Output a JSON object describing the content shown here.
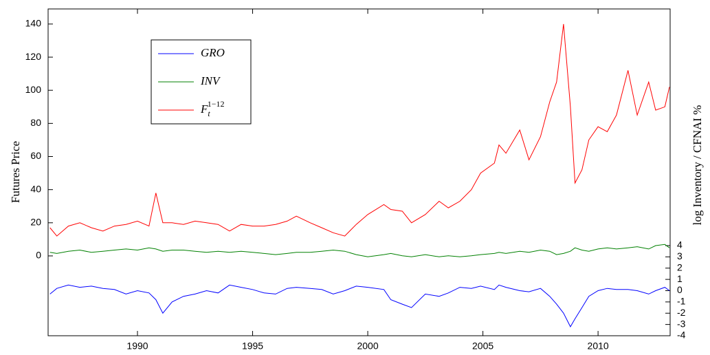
{
  "chart_data": {
    "type": "line",
    "ylabel": "Futures Price",
    "y2label": "log Inventory / CFNAI %",
    "xlim": [
      1986.12,
      2013.13
    ],
    "xticks": [
      1990,
      1995,
      2000,
      2005,
      2010
    ],
    "ylim": [
      -48.2,
      149.1
    ],
    "yticks": [
      0,
      20,
      40,
      60,
      80,
      100,
      120,
      140
    ],
    "y2lim": [
      -4,
      25
    ],
    "y2ticks": [
      -4,
      -3,
      -2,
      -1,
      0,
      1,
      2,
      3,
      4
    ],
    "legend": "upper-left",
    "x": [
      1986.2,
      1986.5,
      1987.0,
      1987.5,
      1988.0,
      1988.5,
      1989.0,
      1989.5,
      1990.0,
      1990.5,
      1990.8,
      1991.1,
      1991.5,
      1992.0,
      1992.5,
      1993.0,
      1993.5,
      1994.0,
      1994.5,
      1995.0,
      1995.5,
      1996.0,
      1996.5,
      1996.9,
      1997.5,
      1998.0,
      1998.5,
      1999.0,
      1999.5,
      2000.0,
      2000.7,
      2001.0,
      2001.5,
      2001.9,
      2002.5,
      2003.1,
      2003.5,
      2004.0,
      2004.5,
      2004.9,
      2005.5,
      2005.7,
      2006.0,
      2006.6,
      2007.0,
      2007.5,
      2007.9,
      2008.2,
      2008.5,
      2008.8,
      2009.0,
      2009.3,
      2009.6,
      2010.0,
      2010.4,
      2010.8,
      2011.3,
      2011.7,
      2012.2,
      2012.5,
      2012.9,
      2013.1
    ],
    "series": [
      {
        "name": "GRO",
        "color": "#0000ff",
        "axis": "y2",
        "values": [
          -0.3,
          0.2,
          0.5,
          0.3,
          0.4,
          0.2,
          0.1,
          -0.3,
          0,
          -0.2,
          -0.8,
          -2.0,
          -1.0,
          -0.5,
          -0.3,
          0,
          -0.2,
          0.5,
          0.3,
          0.1,
          -0.2,
          -0.3,
          0.2,
          0.3,
          0.2,
          0.1,
          -0.3,
          0,
          0.4,
          0.3,
          0.1,
          -0.8,
          -1.2,
          -1.5,
          -0.3,
          -0.5,
          -0.2,
          0.3,
          0.2,
          0.4,
          0.1,
          0.5,
          0.3,
          0,
          -0.1,
          0.2,
          -0.5,
          -1.2,
          -2.0,
          -3.2,
          -2.5,
          -1.5,
          -0.5,
          0,
          0.2,
          0.1,
          0.1,
          0,
          -0.3,
          0,
          0.3,
          0
        ]
      },
      {
        "name": "INV",
        "color": "#008000",
        "axis": "y2",
        "values": [
          3.4,
          3.3,
          3.5,
          3.6,
          3.4,
          3.5,
          3.6,
          3.7,
          3.6,
          3.8,
          3.7,
          3.5,
          3.6,
          3.6,
          3.5,
          3.4,
          3.5,
          3.4,
          3.5,
          3.4,
          3.3,
          3.2,
          3.3,
          3.4,
          3.4,
          3.5,
          3.6,
          3.5,
          3.2,
          3.0,
          3.2,
          3.3,
          3.1,
          3.0,
          3.2,
          3.0,
          3.1,
          3.0,
          3.1,
          3.2,
          3.3,
          3.4,
          3.3,
          3.5,
          3.4,
          3.6,
          3.5,
          3.2,
          3.3,
          3.5,
          3.8,
          3.6,
          3.5,
          3.7,
          3.8,
          3.7,
          3.8,
          3.9,
          3.7,
          4.0,
          4.1,
          3.8
        ]
      },
      {
        "name": "F_t^{1−12}",
        "color": "#ff0000",
        "values": [
          17,
          12,
          18,
          20,
          17,
          15,
          18,
          19,
          21,
          18,
          38,
          20,
          20,
          19,
          21,
          20,
          19,
          15,
          19,
          18,
          18,
          19,
          21,
          24,
          20,
          17,
          14,
          12,
          19,
          25,
          31,
          28,
          27,
          20,
          25,
          33,
          29,
          33,
          40,
          50,
          56,
          67,
          62,
          76,
          58,
          72,
          93,
          105,
          140,
          90,
          44,
          52,
          70,
          78,
          75,
          85,
          112,
          85,
          105,
          88,
          90,
          102
        ]
      }
    ]
  }
}
